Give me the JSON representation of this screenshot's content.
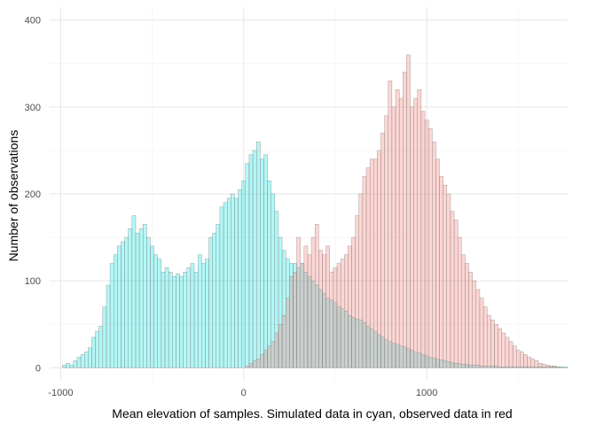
{
  "chart_data": {
    "type": "histogram",
    "xlabel": "Mean elevation of samples. Simulated data in cyan, observed data in red",
    "ylabel": "Number of observations",
    "xlim": [
      -1060,
      1770
    ],
    "ylim": [
      -15,
      415
    ],
    "x_ticks": [
      -1000,
      0,
      1000
    ],
    "x_tick_labels": [
      "-1000",
      "0",
      "1000"
    ],
    "y_ticks": [
      0,
      100,
      200,
      300,
      400
    ],
    "y_tick_labels": [
      "0",
      "100",
      "200",
      "300",
      "400"
    ],
    "grid": true,
    "bin_width": 20,
    "series": [
      {
        "color": "#00e5e5",
        "bin_start": -990,
        "values": [
          3,
          5,
          3,
          8,
          12,
          15,
          18,
          23,
          35,
          42,
          48,
          70,
          95,
          120,
          130,
          140,
          145,
          150,
          160,
          175,
          155,
          160,
          165,
          150,
          140,
          130,
          125,
          110,
          115,
          110,
          105,
          108,
          105,
          110,
          115,
          120,
          110,
          130,
          120,
          125,
          150,
          155,
          165,
          185,
          190,
          195,
          200,
          195,
          205,
          215,
          235,
          245,
          250,
          260,
          240,
          245,
          215,
          200,
          180,
          150,
          135,
          125,
          120,
          120,
          115,
          120,
          110,
          105,
          100,
          95,
          90,
          85,
          80,
          78,
          75,
          70,
          68,
          65,
          60,
          58,
          56,
          55,
          52,
          48,
          45,
          42,
          38,
          35,
          32,
          30,
          28,
          27,
          25,
          24,
          22,
          20,
          18,
          17,
          15,
          14,
          12,
          11,
          10,
          9,
          8,
          7,
          6,
          5,
          5,
          4,
          4,
          3,
          3,
          3,
          2,
          2,
          2,
          2,
          2,
          1,
          1,
          1,
          1,
          1,
          1,
          1,
          1,
          1,
          1,
          1,
          1,
          1,
          1,
          1,
          1,
          1,
          1,
          1
        ]
      },
      {
        "color": "#f8766d",
        "bin_start": 10,
        "values": [
          2,
          5,
          8,
          10,
          15,
          20,
          25,
          30,
          40,
          50,
          60,
          80,
          105,
          110,
          150,
          120,
          140,
          130,
          150,
          165,
          135,
          130,
          140,
          110,
          115,
          120,
          125,
          130,
          140,
          150,
          175,
          200,
          220,
          230,
          240,
          240,
          250,
          270,
          290,
          330,
          300,
          320,
          310,
          340,
          360,
          300,
          310,
          320,
          295,
          285,
          275,
          260,
          240,
          220,
          210,
          200,
          180,
          170,
          150,
          130,
          120,
          110,
          100,
          90,
          80,
          70,
          60,
          55,
          50,
          45,
          40,
          35,
          30,
          25,
          20,
          18,
          15,
          12,
          10,
          8,
          5,
          4,
          3,
          2,
          2,
          1
        ]
      }
    ]
  }
}
